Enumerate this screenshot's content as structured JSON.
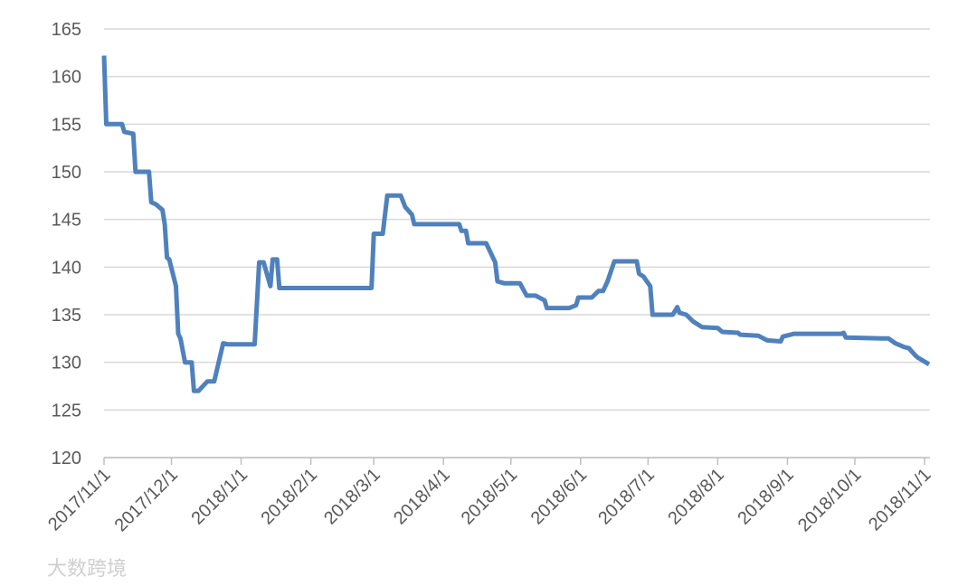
{
  "chart_data": {
    "type": "line",
    "x": [
      "2017/11/1",
      "2017/11/2",
      "2017/11/9",
      "2017/11/10",
      "2017/11/14",
      "2017/11/15",
      "2017/11/21",
      "2017/11/22",
      "2017/11/24",
      "2017/11/27",
      "2017/11/28",
      "2017/11/29",
      "2017/11/30",
      "2017/12/3",
      "2017/12/4",
      "2017/12/5",
      "2017/12/7",
      "2017/12/10",
      "2017/12/11",
      "2017/12/13",
      "2017/12/17",
      "2017/12/20",
      "2017/12/24",
      "2017/12/26",
      "2018/1/7",
      "2018/1/9",
      "2018/1/11",
      "2018/1/14",
      "2018/1/15",
      "2018/1/17",
      "2018/1/18",
      "2018/2/28",
      "2018/3/1",
      "2018/3/5",
      "2018/3/7",
      "2018/3/13",
      "2018/3/15",
      "2018/3/18",
      "2018/3/19",
      "2018/4/8",
      "2018/4/9",
      "2018/4/11",
      "2018/4/12",
      "2018/4/20",
      "2018/4/24",
      "2018/4/25",
      "2018/4/28",
      "2018/5/5",
      "2018/5/8",
      "2018/5/12",
      "2018/5/16",
      "2018/5/17",
      "2018/5/27",
      "2018/5/30",
      "2018/5/31",
      "2018/6/6",
      "2018/6/9",
      "2018/6/11",
      "2018/6/13",
      "2018/6/16",
      "2018/6/26",
      "2018/6/27",
      "2018/6/29",
      "2018/7/2",
      "2018/7/3",
      "2018/7/12",
      "2018/7/14",
      "2018/7/15",
      "2018/7/18",
      "2018/7/21",
      "2018/7/23",
      "2018/7/25",
      "2018/8/1",
      "2018/8/3",
      "2018/8/10",
      "2018/8/11",
      "2018/8/19",
      "2018/8/23",
      "2018/8/29",
      "2018/8/30",
      "2018/9/4",
      "2018/9/25",
      "2018/9/26",
      "2018/9/27",
      "2018/10/13",
      "2018/10/16",
      "2018/10/19",
      "2018/10/23",
      "2018/10/25",
      "2018/10/28",
      "2018/10/29",
      "2018/11/3"
    ],
    "series": [
      {
        "color": "#4f81bd",
        "values": [
          162.2,
          155,
          155,
          154.2,
          154,
          150,
          150,
          146.8,
          146.6,
          146,
          144.5,
          141,
          140.8,
          138,
          133,
          132.5,
          130,
          130,
          127,
          127,
          128,
          128,
          132,
          131.9,
          131.9,
          140.5,
          140.5,
          138,
          140.8,
          140.8,
          137.8,
          137.8,
          143.5,
          143.5,
          147.5,
          147.5,
          146.3,
          145.5,
          144.5,
          144.5,
          143.8,
          143.8,
          142.5,
          142.5,
          140.5,
          138.5,
          138.3,
          138.3,
          137,
          137,
          136.5,
          135.7,
          135.7,
          136,
          136.8,
          136.8,
          137.5,
          137.5,
          138.5,
          140.6,
          140.6,
          139.3,
          139,
          138,
          135,
          135,
          135.8,
          135.2,
          135,
          134.3,
          134,
          133.7,
          133.6,
          133.2,
          133.1,
          132.9,
          132.8,
          132.3,
          132.2,
          132.7,
          133,
          133,
          133.1,
          132.6,
          132.5,
          132.5,
          132,
          131.6,
          131.5,
          130.7,
          130.5,
          129.8
        ]
      }
    ],
    "xlim": [
      "2017/11/1",
      "2018/11/3"
    ],
    "xticks": [
      "2017/11/1",
      "2017/12/1",
      "2018/1/1",
      "2018/2/1",
      "2018/3/1",
      "2018/4/1",
      "2018/5/1",
      "2018/6/1",
      "2018/7/1",
      "2018/8/1",
      "2018/9/1",
      "2018/10/1",
      "2018/11/1"
    ],
    "ylim": [
      120,
      165
    ],
    "yticks": [
      120,
      125,
      130,
      135,
      140,
      145,
      150,
      155,
      160,
      165
    ],
    "grid": true
  },
  "watermark": "大数跨境"
}
